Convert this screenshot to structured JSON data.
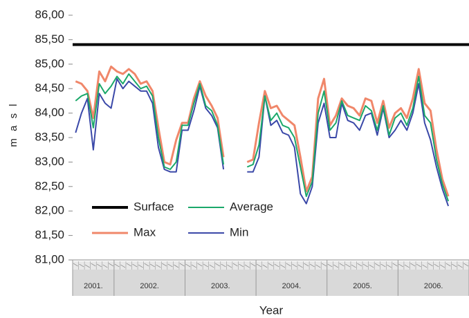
{
  "chart_data": {
    "type": "line",
    "x_label": "Year",
    "y_label": "m a s l",
    "categories": [
      null,
      null,
      null,
      null,
      null,
      null,
      null,
      null,
      null,
      null,
      null,
      null,
      null,
      null,
      null,
      null,
      null,
      null,
      null,
      null,
      null,
      null,
      null,
      null,
      null,
      null,
      null,
      null,
      null,
      null,
      null,
      null,
      null,
      null,
      null,
      null,
      null,
      null,
      null,
      null,
      null,
      null,
      null,
      null,
      null,
      null,
      null,
      null,
      null,
      null,
      null,
      null,
      null,
      null,
      null,
      null,
      null,
      null,
      null,
      null,
      null,
      null,
      null,
      null,
      null,
      null,
      null
    ],
    "x_groups": [
      {
        "label": "2001.",
        "span": 7
      },
      {
        "label": "2002.",
        "span": 12
      },
      {
        "label": "2003.",
        "span": 12
      },
      {
        "label": "2004.",
        "span": 12
      },
      {
        "label": "2005.",
        "span": 12
      },
      {
        "label": "2006.",
        "span": 12
      }
    ],
    "ylim": [
      81,
      86
    ],
    "yticks": [
      {
        "value": 81,
        "label": "81,00"
      },
      {
        "value": 81.5,
        "label": "81,50"
      },
      {
        "value": 82,
        "label": "82,00"
      },
      {
        "value": 82.5,
        "label": "82,50"
      },
      {
        "value": 83,
        "label": "83,00"
      },
      {
        "value": 83.5,
        "label": "83,50"
      },
      {
        "value": 84,
        "label": "84,00"
      },
      {
        "value": 84.5,
        "label": "84,50"
      },
      {
        "value": 85,
        "label": "85,00"
      },
      {
        "value": 85.5,
        "label": "85,50"
      },
      {
        "value": 86,
        "label": "86,00"
      }
    ],
    "series": [
      {
        "name": "Surface",
        "color": "#000000",
        "width": 4,
        "values": [
          85.4,
          85.4,
          85.4,
          85.4,
          85.4,
          85.4,
          85.4,
          85.4,
          85.4,
          85.4,
          85.4,
          85.4,
          85.4,
          85.4,
          85.4,
          85.4,
          85.4,
          85.4,
          85.4,
          85.4,
          85.4,
          85.4,
          85.4,
          85.4,
          85.4,
          85.4,
          85.4,
          85.4,
          85.4,
          85.4,
          85.4,
          85.4,
          85.4,
          85.4,
          85.4,
          85.4,
          85.4,
          85.4,
          85.4,
          85.4,
          85.4,
          85.4,
          85.4,
          85.4,
          85.4,
          85.4,
          85.4,
          85.4,
          85.4,
          85.4,
          85.4,
          85.4,
          85.4,
          85.4,
          85.4,
          85.4,
          85.4,
          85.4,
          85.4,
          85.4,
          85.4,
          85.4,
          85.4,
          85.4,
          85.4,
          85.4,
          85.4
        ]
      },
      {
        "name": "Average",
        "color": "#1aa86a",
        "width": 2,
        "values": [
          84.25,
          84.35,
          84.4,
          83.7,
          84.6,
          84.4,
          84.55,
          84.75,
          84.6,
          84.8,
          84.65,
          84.5,
          84.55,
          84.35,
          83.5,
          82.9,
          82.85,
          83.0,
          83.75,
          83.75,
          84.2,
          84.6,
          84.15,
          84.05,
          83.75,
          82.95,
          null,
          null,
          null,
          82.9,
          82.95,
          83.35,
          84.35,
          83.85,
          84.0,
          83.75,
          83.7,
          83.5,
          82.9,
          82.3,
          82.6,
          84.0,
          84.45,
          83.65,
          83.8,
          84.25,
          83.95,
          83.9,
          83.85,
          84.15,
          84.05,
          83.65,
          84.15,
          83.55,
          83.9,
          84.0,
          83.75,
          84.1,
          84.75,
          83.95,
          83.8,
          83.05,
          82.55,
          82.2,
          null,
          null,
          null
        ]
      },
      {
        "name": "Max",
        "color": "#f0876a",
        "width": 3,
        "values": [
          84.65,
          84.6,
          84.45,
          83.9,
          84.85,
          84.65,
          84.95,
          84.85,
          84.8,
          84.9,
          84.8,
          84.6,
          84.65,
          84.45,
          83.7,
          83.0,
          82.95,
          83.45,
          83.8,
          83.8,
          84.3,
          84.65,
          84.35,
          84.15,
          83.9,
          83.1,
          null,
          null,
          null,
          83.0,
          83.05,
          83.8,
          84.45,
          84.1,
          84.15,
          83.95,
          83.85,
          83.75,
          83.1,
          82.4,
          82.7,
          84.3,
          84.7,
          83.75,
          83.95,
          84.3,
          84.15,
          84.1,
          83.95,
          84.3,
          84.25,
          83.8,
          84.25,
          83.7,
          84.0,
          84.1,
          83.9,
          84.3,
          84.9,
          84.2,
          84.05,
          83.25,
          82.65,
          82.3,
          null,
          null,
          null
        ]
      },
      {
        "name": "Min",
        "color": "#3a48a8",
        "width": 2,
        "values": [
          83.6,
          84.0,
          84.3,
          83.25,
          84.4,
          84.2,
          84.1,
          84.7,
          84.5,
          84.65,
          84.55,
          84.45,
          84.45,
          84.2,
          83.3,
          82.85,
          82.8,
          82.8,
          83.65,
          83.65,
          84.05,
          84.55,
          84.1,
          83.95,
          83.7,
          82.85,
          null,
          null,
          null,
          82.8,
          82.8,
          83.1,
          84.35,
          83.75,
          83.85,
          83.6,
          83.55,
          83.3,
          82.35,
          82.15,
          82.5,
          83.8,
          84.2,
          83.5,
          83.5,
          84.2,
          83.85,
          83.8,
          83.65,
          83.95,
          84.0,
          83.55,
          84.1,
          83.5,
          83.65,
          83.85,
          83.65,
          84.0,
          84.6,
          83.8,
          83.45,
          82.9,
          82.45,
          82.1,
          null,
          null,
          null
        ]
      }
    ],
    "draw_order": [
      2,
      3,
      1,
      0
    ],
    "grid": false
  }
}
